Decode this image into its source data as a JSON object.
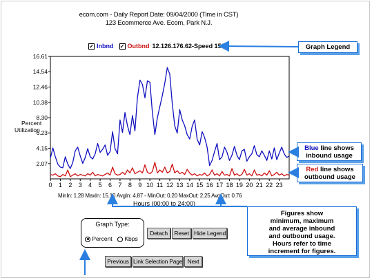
{
  "report": {
    "title_line1": "ecom.com - Daily Report Date: 09/04/2000  (Time in CST)",
    "title_line2": "123 Ecommerce Ave. Ecom, Park N.J."
  },
  "legend": {
    "inbound_label": "Inbnd",
    "outbound_label": "Outbnd",
    "ip_speed": "12.126.176.62-Speed 1536",
    "inbound_checked": true,
    "outbound_checked": true
  },
  "colors": {
    "inbound": "#1010c0",
    "outbound": "#cc1010",
    "callout_border": "#1a6fd8",
    "arrow": "#2a7fe0"
  },
  "stats": {
    "text": "MinIn: 1.28  MaxIn: 15.10  AvgIn: 4.87  -  MinOut: 0.20  MaxOut:  2.25  AvgOut: 0.76"
  },
  "callouts": {
    "graph_legend": "Graph Legend",
    "blue_word": "Blue",
    "blue_rest_1": " line shows",
    "blue_rest_2": "inbound usage",
    "red_word": "Red",
    "red_rest_1": " line shows",
    "red_rest_2": "outbound usage",
    "figures_1": "Figures show",
    "figures_2": "minimum, maximum",
    "figures_3": "and average inbound",
    "figures_4": "and outbound usage.",
    "figures_5": "Hours refer to time",
    "figures_6": "increment for figures."
  },
  "controls": {
    "graph_type_title": "Graph Type:",
    "option_percent": "Percent",
    "option_kbps": "Kbps",
    "selected": "Percent",
    "detach": "Detach",
    "reset": "Reset",
    "hide_legend": "Hide Legend",
    "previous": "Previous",
    "link_selection": "Link Selection Page",
    "next": "Next"
  },
  "chart_data": {
    "type": "line",
    "title": "ecom.com - Daily Report Date: 09/04/2000  (Time in CST)",
    "subtitle": "123 Ecommerce Ave. Ecom, Park N.J.",
    "xlabel": "Hours (00:00 to 24:00)",
    "ylabel": "Percent Utilization",
    "ylabel_line1": "Percent",
    "ylabel_line2": "Utilization",
    "xlim": [
      0,
      24
    ],
    "ylim": [
      0,
      16.61
    ],
    "x_ticks": [
      0,
      1,
      2,
      3,
      4,
      5,
      6,
      7,
      8,
      9,
      10,
      11,
      12,
      13,
      14,
      15,
      16,
      17,
      18,
      19,
      20,
      21,
      22,
      23
    ],
    "y_ticks": [
      2.07,
      4.15,
      6.23,
      8.3,
      10.38,
      12.46,
      14.54,
      16.61
    ],
    "y_tick_labels": [
      "2.07",
      "4.15",
      "6.23",
      "8.30",
      "10.38",
      "12.46",
      "14.54",
      "16.61"
    ],
    "grid": false,
    "series": [
      {
        "name": "Inbnd",
        "color": "#1010c0",
        "x": [
          0,
          0.25,
          0.5,
          0.75,
          1,
          1.25,
          1.5,
          1.75,
          2,
          2.25,
          2.5,
          2.75,
          3,
          3.25,
          3.5,
          3.75,
          4,
          4.25,
          4.5,
          4.75,
          5,
          5.25,
          5.5,
          5.75,
          6,
          6.25,
          6.5,
          6.75,
          7,
          7.25,
          7.5,
          7.75,
          8,
          8.25,
          8.5,
          8.75,
          9,
          9.25,
          9.5,
          9.75,
          10,
          10.25,
          10.5,
          10.75,
          11,
          11.25,
          11.5,
          11.75,
          12,
          12.25,
          12.5,
          12.75,
          13,
          13.25,
          13.5,
          13.75,
          14,
          14.25,
          14.5,
          14.75,
          15,
          15.25,
          15.5,
          15.75,
          16,
          16.25,
          16.5,
          16.75,
          17,
          17.25,
          17.5,
          17.75,
          18,
          18.25,
          18.5,
          18.75,
          19,
          19.25,
          19.5,
          19.75,
          20,
          20.25,
          20.5,
          20.75,
          21,
          21.25,
          21.5,
          21.75,
          22,
          22.25,
          22.5,
          22.75,
          23,
          23.25,
          23.5,
          23.75,
          24
        ],
        "y": [
          2.8,
          4.2,
          3.0,
          2.0,
          1.6,
          1.5,
          3.0,
          2.0,
          1.4,
          2.2,
          3.8,
          4.3,
          3.1,
          2.1,
          2.9,
          4.1,
          3.0,
          2.7,
          3.4,
          4.8,
          3.6,
          4.0,
          4.6,
          3.2,
          3.7,
          6.4,
          4.1,
          3.4,
          8.0,
          6.3,
          9.0,
          7.2,
          6.0,
          8.6,
          6.5,
          11.0,
          13.4,
          12.8,
          11.0,
          13.3,
          13.1,
          9.0,
          6.0,
          8.3,
          9.8,
          11.3,
          13.0,
          15.1,
          14.2,
          10.2,
          7.2,
          6.2,
          9.4,
          8.0,
          7.2,
          6.0,
          5.4,
          7.1,
          8.0,
          5.4,
          4.6,
          6.4,
          5.6,
          4.3,
          1.8,
          2.5,
          3.7,
          4.8,
          2.6,
          3.0,
          4.3,
          3.6,
          2.5,
          3.2,
          4.4,
          3.2,
          2.6,
          3.8,
          4.0,
          2.4,
          3.0,
          3.4,
          4.5,
          3.3,
          3.0,
          3.8,
          3.2,
          2.5,
          3.8,
          2.7,
          4.2,
          2.6,
          3.5,
          4.3,
          3.4,
          2.9,
          3.1
        ]
      },
      {
        "name": "Outbnd",
        "color": "#cc1010",
        "x": [
          0,
          0.25,
          0.5,
          0.75,
          1,
          1.25,
          1.5,
          1.75,
          2,
          2.25,
          2.5,
          2.75,
          3,
          3.25,
          3.5,
          3.75,
          4,
          4.25,
          4.5,
          4.75,
          5,
          5.25,
          5.5,
          5.75,
          6,
          6.25,
          6.5,
          6.75,
          7,
          7.25,
          7.5,
          7.75,
          8,
          8.25,
          8.5,
          8.75,
          9,
          9.25,
          9.5,
          9.75,
          10,
          10.25,
          10.5,
          10.75,
          11,
          11.25,
          11.5,
          11.75,
          12,
          12.25,
          12.5,
          12.75,
          13,
          13.25,
          13.5,
          13.75,
          14,
          14.25,
          14.5,
          14.75,
          15,
          15.25,
          15.5,
          15.75,
          16,
          16.25,
          16.5,
          16.75,
          17,
          17.25,
          17.5,
          17.75,
          18,
          18.25,
          18.5,
          18.75,
          19,
          19.25,
          19.5,
          19.75,
          20,
          20.25,
          20.5,
          20.75,
          21,
          21.25,
          21.5,
          21.75,
          22,
          22.25,
          22.5,
          22.75,
          23,
          23.25,
          23.5,
          23.75,
          24
        ],
        "y": [
          0.6,
          0.5,
          0.7,
          0.4,
          0.3,
          0.6,
          0.4,
          1.2,
          0.3,
          0.5,
          0.7,
          0.4,
          0.6,
          0.5,
          0.4,
          0.7,
          0.5,
          0.9,
          0.4,
          0.6,
          0.5,
          0.4,
          0.6,
          0.8,
          0.5,
          1.6,
          0.7,
          0.5,
          0.6,
          0.9,
          0.6,
          1.2,
          0.8,
          1.5,
          0.7,
          0.9,
          1.1,
          0.8,
          1.9,
          0.9,
          0.7,
          1.0,
          2.25,
          0.8,
          1.2,
          0.9,
          1.6,
          0.8,
          1.0,
          2.0,
          0.8,
          1.1,
          0.7,
          0.9,
          0.6,
          1.3,
          0.8,
          0.5,
          0.7,
          0.4,
          0.6,
          0.5,
          0.8,
          0.4,
          0.6,
          1.2,
          0.5,
          0.7,
          0.4,
          1.0,
          0.5,
          0.6,
          0.4,
          1.4,
          0.5,
          0.7,
          0.4,
          0.6,
          1.3,
          0.5,
          0.7,
          0.4,
          1.2,
          0.5,
          0.6,
          0.4,
          0.8,
          0.5,
          1.1,
          0.4,
          0.6,
          0.9,
          0.5,
          0.7,
          0.4,
          0.6,
          0.5
        ]
      }
    ],
    "stats": {
      "MinIn": 1.28,
      "MaxIn": 15.1,
      "AvgIn": 4.87,
      "MinOut": 0.2,
      "MaxOut": 2.25,
      "AvgOut": 0.76
    }
  }
}
